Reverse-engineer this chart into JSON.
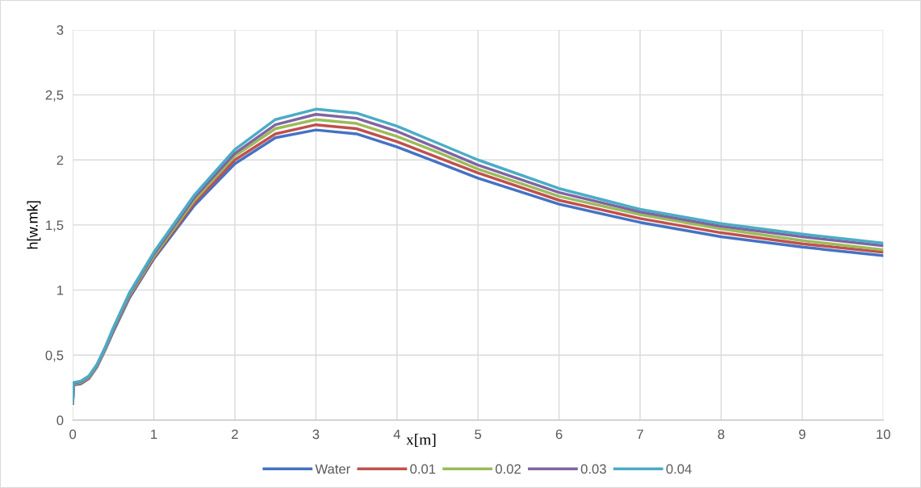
{
  "chart_data": {
    "type": "line",
    "xlabel": "x[m]",
    "ylabel": "h[w.mk]",
    "x": [
      0,
      0.01,
      0.1,
      0.2,
      0.3,
      0.4,
      0.5,
      0.7,
      1,
      1.5,
      2,
      2.5,
      3,
      3.5,
      4,
      4.5,
      5,
      6,
      7,
      8,
      9,
      10
    ],
    "series": [
      {
        "name": "Water",
        "color": "#4472c4",
        "values": [
          0.13,
          0.27,
          0.28,
          0.32,
          0.41,
          0.54,
          0.68,
          0.94,
          1.24,
          1.65,
          1.97,
          2.17,
          2.23,
          2.2,
          2.1,
          1.98,
          1.86,
          1.66,
          1.52,
          1.41,
          1.33,
          1.265
        ]
      },
      {
        "name": "0.01",
        "color": "#c0504d",
        "values": [
          0.13,
          0.275,
          0.285,
          0.325,
          0.415,
          0.545,
          0.69,
          0.95,
          1.25,
          1.67,
          2.0,
          2.2,
          2.27,
          2.24,
          2.14,
          2.02,
          1.9,
          1.69,
          1.55,
          1.44,
          1.355,
          1.29
        ]
      },
      {
        "name": "0.02",
        "color": "#9bbb59",
        "values": [
          0.135,
          0.28,
          0.29,
          0.33,
          0.42,
          0.55,
          0.7,
          0.96,
          1.26,
          1.69,
          2.03,
          2.24,
          2.31,
          2.28,
          2.18,
          2.06,
          1.93,
          1.72,
          1.58,
          1.47,
          1.38,
          1.31
        ]
      },
      {
        "name": "0.03",
        "color": "#8064a2",
        "values": [
          0.14,
          0.285,
          0.295,
          0.335,
          0.425,
          0.555,
          0.705,
          0.97,
          1.275,
          1.71,
          2.05,
          2.27,
          2.35,
          2.32,
          2.22,
          2.09,
          1.96,
          1.75,
          1.6,
          1.49,
          1.41,
          1.34
        ]
      },
      {
        "name": "0.04",
        "color": "#4bacc6",
        "values": [
          0.14,
          0.29,
          0.3,
          0.34,
          0.43,
          0.56,
          0.71,
          0.98,
          1.29,
          1.73,
          2.08,
          2.31,
          2.39,
          2.36,
          2.26,
          2.13,
          2.0,
          1.78,
          1.62,
          1.51,
          1.43,
          1.36
        ]
      }
    ],
    "xlim": [
      0,
      10
    ],
    "xticks": [
      0,
      1,
      2,
      3,
      4,
      5,
      6,
      7,
      8,
      9,
      10
    ],
    "ylim": [
      0,
      3
    ],
    "yticks": [
      0,
      {
        "value": 0.5,
        "label": "0,5"
      },
      1,
      {
        "value": 1.5,
        "label": "1,5"
      },
      2,
      {
        "value": 2.5,
        "label": "2,5"
      },
      3
    ],
    "grid": true,
    "legend": "bottom",
    "marker": "none",
    "line_style": "solid"
  }
}
